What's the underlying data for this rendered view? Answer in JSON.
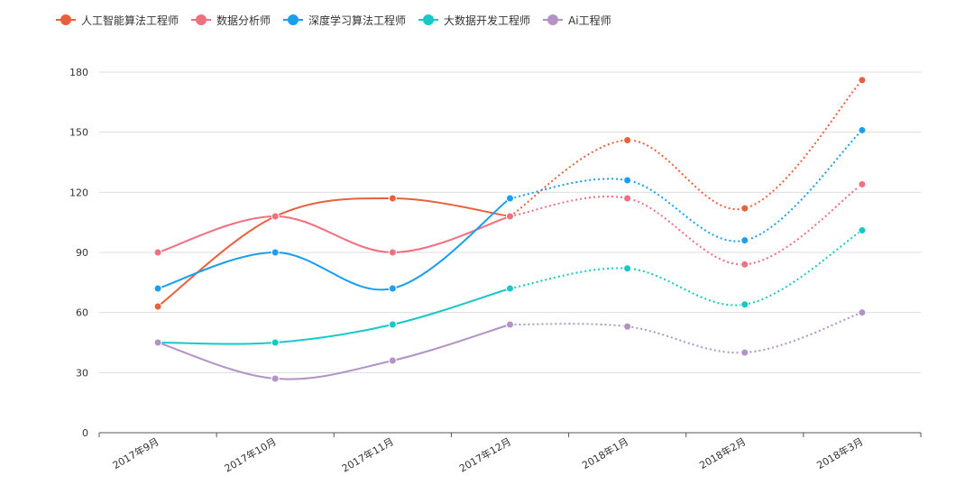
{
  "colors": {
    "axis": "#555555",
    "grid": "#dddddd",
    "tick_label": "#333333"
  },
  "chart_data": {
    "type": "line",
    "title": "",
    "xlabel": "",
    "ylabel": "",
    "categories": [
      "2017年9月",
      "2017年10月",
      "2017年11月",
      "2017年12月",
      "2018年1月",
      "2018年2月",
      "2018年3月"
    ],
    "ylim": [
      0,
      180
    ],
    "yticks": [
      0,
      30,
      60,
      90,
      120,
      150,
      180
    ],
    "grid": true,
    "legend_position": "top-left",
    "solid_until_index": 3,
    "series": [
      {
        "name": "人工智能算法工程师",
        "color": "#e8613c",
        "values": [
          63,
          108,
          117,
          108,
          146,
          112,
          176
        ]
      },
      {
        "name": "数据分析师",
        "color": "#f0707f",
        "values": [
          90,
          108,
          90,
          108,
          117,
          84,
          124
        ]
      },
      {
        "name": "深度学习算法工程师",
        "color": "#1a9ff0",
        "values": [
          72,
          90,
          72,
          117,
          126,
          96,
          151
        ]
      },
      {
        "name": "大数据开发工程师",
        "color": "#16c8c8",
        "values": [
          45,
          45,
          54,
          72,
          82,
          64,
          101
        ]
      },
      {
        "name": "Ai工程师",
        "color": "#b392c6",
        "values": [
          45,
          27,
          36,
          54,
          53,
          40,
          60
        ]
      }
    ]
  }
}
